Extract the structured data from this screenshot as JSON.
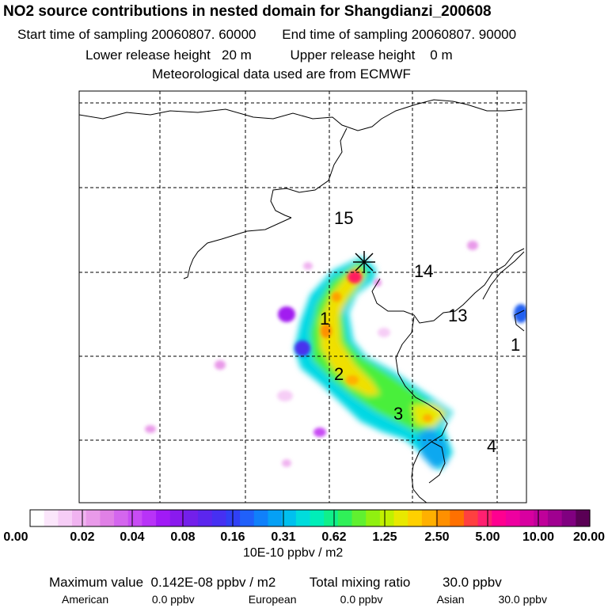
{
  "header": {
    "title": "NO2 source contributions in nested domain for Shangdianzi_200608",
    "start_label": "Start time of sampling",
    "start_value": "20060807. 60000",
    "end_label": "End time of sampling",
    "end_value": "20060807. 90000",
    "lower_label": "Lower release height",
    "lower_value": "20 m",
    "upper_label": "Upper release height",
    "upper_value": "0 m",
    "met_text": "Meteorological data used are from ECMWF"
  },
  "map": {
    "contour_labels": [
      "15",
      "14",
      "13",
      "1",
      "1",
      "2",
      "3",
      "4"
    ],
    "receptor_marker": "star"
  },
  "colorbar": {
    "tick_labels": [
      "0.00",
      "0.02",
      "0.04",
      "0.08",
      "0.16",
      "0.31",
      "0.62",
      "1.25",
      "2.50",
      "5.00",
      "10.00",
      "20.00"
    ],
    "units": "10E-10 ppbv / m2",
    "colors": [
      "#ffffff",
      "#fbe6fb",
      "#f6cdf6",
      "#f0b3f0",
      "#e99ae9",
      "#e080e6",
      "#d466ee",
      "#c84cf4",
      "#b833f7",
      "#a11af6",
      "#8a1aee",
      "#7320ea",
      "#5c26ee",
      "#4630f2",
      "#3040f6",
      "#2060fa",
      "#1080fa",
      "#05a0f5",
      "#00c0ee",
      "#00dcdc",
      "#00eeb8",
      "#10f08a",
      "#30f058",
      "#60f030",
      "#90f010",
      "#c0f000",
      "#e8e800",
      "#ffd000",
      "#ffb000",
      "#ff9000",
      "#ff7000",
      "#ff4040",
      "#ff2070",
      "#ff0090",
      "#ee00a0",
      "#d800a0",
      "#c0009a",
      "#a00090",
      "#800080",
      "#5a0055"
    ]
  },
  "stats": {
    "max_label": "Maximum value",
    "max_value": "0.142E-08 ppbv / m2",
    "total_label": "Total mixing ratio",
    "total_value": "30.0 ppbv",
    "american_label": "American",
    "american_value": "0.0 ppbv",
    "european_label": "European",
    "european_value": "0.0 ppbv",
    "asian_label": "Asian",
    "asian_value": "30.0 ppbv"
  }
}
